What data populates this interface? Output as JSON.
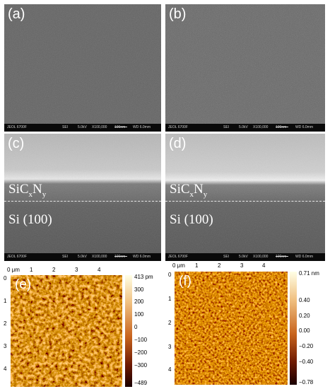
{
  "panels": [
    {
      "label": "(a)"
    },
    {
      "label": "(b)"
    },
    {
      "label": "(c)",
      "layer_top": "SiC",
      "layer_top_sub1": "x",
      "layer_top_mid": "N",
      "layer_top_sub2": "y",
      "layer_bottom": "Si (100)"
    },
    {
      "label": "(d)",
      "layer_top": "SiC",
      "layer_top_sub1": "x",
      "layer_top_mid": "N",
      "layer_top_sub2": "y",
      "layer_bottom": "Si (100)"
    }
  ],
  "sem_bar": {
    "instrument": "JEOL 6700F",
    "detector": "SEI",
    "voltage": "5.0kV",
    "magnification": "X100,000",
    "scale": "100nm",
    "wd": "WD 6.0mm"
  },
  "afm": [
    {
      "label": "(e)",
      "x_ticks": [
        "0 μm",
        "1",
        "2",
        "3",
        "4"
      ],
      "y_ticks": [
        "0",
        "1",
        "2",
        "3",
        "4"
      ],
      "colorbar_ticks": [
        "413 pm",
        "300",
        "200",
        "100",
        "0",
        "−100",
        "−200",
        "−300",
        "−489"
      ],
      "colorbar_min": -489,
      "colorbar_max": 413
    },
    {
      "label": "(f)",
      "x_ticks": [
        "0 μm",
        "1",
        "2",
        "3",
        "4"
      ],
      "y_ticks": [
        "0",
        "1",
        "2",
        "3",
        "4"
      ],
      "colorbar_ticks": [
        "0.71 nm",
        "0.40",
        "0.20",
        "0.00",
        "−0.20",
        "−0.40",
        "−0.78"
      ],
      "colorbar_min": -0.78,
      "colorbar_max": 0.71
    }
  ],
  "colors": {
    "afm_dark": "#1a0000",
    "afm_mid": "#c8641e",
    "afm_light": "#ffffe6"
  }
}
